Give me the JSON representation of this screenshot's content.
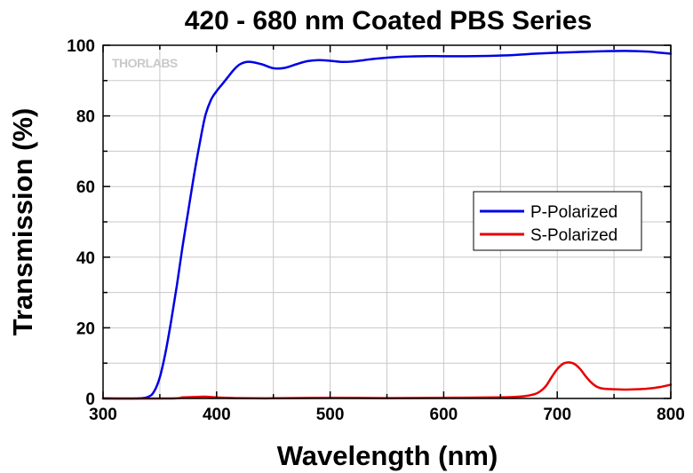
{
  "chart_data": {
    "type": "line",
    "title": "420 - 680 nm Coated PBS Series",
    "xlabel": "Wavelength (nm)",
    "ylabel": "Transmission (%)",
    "xlim": [
      300,
      800
    ],
    "ylim": [
      0,
      100
    ],
    "xticks": [
      300,
      400,
      500,
      600,
      700,
      800
    ],
    "yticks": [
      0,
      20,
      40,
      60,
      80,
      100
    ],
    "grid": true,
    "legend_position": "right-middle",
    "watermark": "THORLABS",
    "series": [
      {
        "name": "P-Polarized",
        "color": "#0000e6",
        "points": [
          [
            300,
            0
          ],
          [
            330,
            0
          ],
          [
            340,
            0.5
          ],
          [
            345,
            2
          ],
          [
            350,
            6
          ],
          [
            355,
            13
          ],
          [
            360,
            22
          ],
          [
            365,
            32
          ],
          [
            370,
            43
          ],
          [
            375,
            53
          ],
          [
            380,
            63
          ],
          [
            385,
            72
          ],
          [
            390,
            80
          ],
          [
            395,
            84.5
          ],
          [
            400,
            87
          ],
          [
            405,
            89
          ],
          [
            410,
            91
          ],
          [
            415,
            93
          ],
          [
            420,
            94.5
          ],
          [
            425,
            95.2
          ],
          [
            430,
            95.3
          ],
          [
            440,
            94.6
          ],
          [
            450,
            93.5
          ],
          [
            460,
            93.6
          ],
          [
            470,
            94.6
          ],
          [
            480,
            95.5
          ],
          [
            490,
            95.8
          ],
          [
            500,
            95.6
          ],
          [
            510,
            95.3
          ],
          [
            520,
            95.4
          ],
          [
            530,
            95.8
          ],
          [
            540,
            96.2
          ],
          [
            560,
            96.7
          ],
          [
            580,
            96.9
          ],
          [
            600,
            96.9
          ],
          [
            620,
            96.9
          ],
          [
            640,
            97.0
          ],
          [
            660,
            97.2
          ],
          [
            680,
            97.6
          ],
          [
            700,
            97.9
          ],
          [
            720,
            98.1
          ],
          [
            740,
            98.3
          ],
          [
            760,
            98.4
          ],
          [
            780,
            98.2
          ],
          [
            790,
            97.9
          ],
          [
            800,
            97.6
          ]
        ]
      },
      {
        "name": "S-Polarized",
        "color": "#e60000",
        "points": [
          [
            300,
            0
          ],
          [
            360,
            0
          ],
          [
            370,
            0.3
          ],
          [
            380,
            0.4
          ],
          [
            390,
            0.5
          ],
          [
            400,
            0.3
          ],
          [
            420,
            0.1
          ],
          [
            450,
            0.05
          ],
          [
            500,
            0.2
          ],
          [
            550,
            0.1
          ],
          [
            600,
            0.2
          ],
          [
            650,
            0.3
          ],
          [
            670,
            0.6
          ],
          [
            680,
            1.2
          ],
          [
            685,
            2
          ],
          [
            690,
            3.5
          ],
          [
            695,
            6
          ],
          [
            700,
            8.3
          ],
          [
            705,
            9.8
          ],
          [
            710,
            10.2
          ],
          [
            715,
            9.8
          ],
          [
            720,
            8.4
          ],
          [
            725,
            6.3
          ],
          [
            730,
            4.5
          ],
          [
            735,
            3.3
          ],
          [
            740,
            2.8
          ],
          [
            750,
            2.6
          ],
          [
            760,
            2.5
          ],
          [
            770,
            2.6
          ],
          [
            780,
            2.8
          ],
          [
            790,
            3.2
          ],
          [
            800,
            3.9
          ]
        ]
      }
    ]
  }
}
